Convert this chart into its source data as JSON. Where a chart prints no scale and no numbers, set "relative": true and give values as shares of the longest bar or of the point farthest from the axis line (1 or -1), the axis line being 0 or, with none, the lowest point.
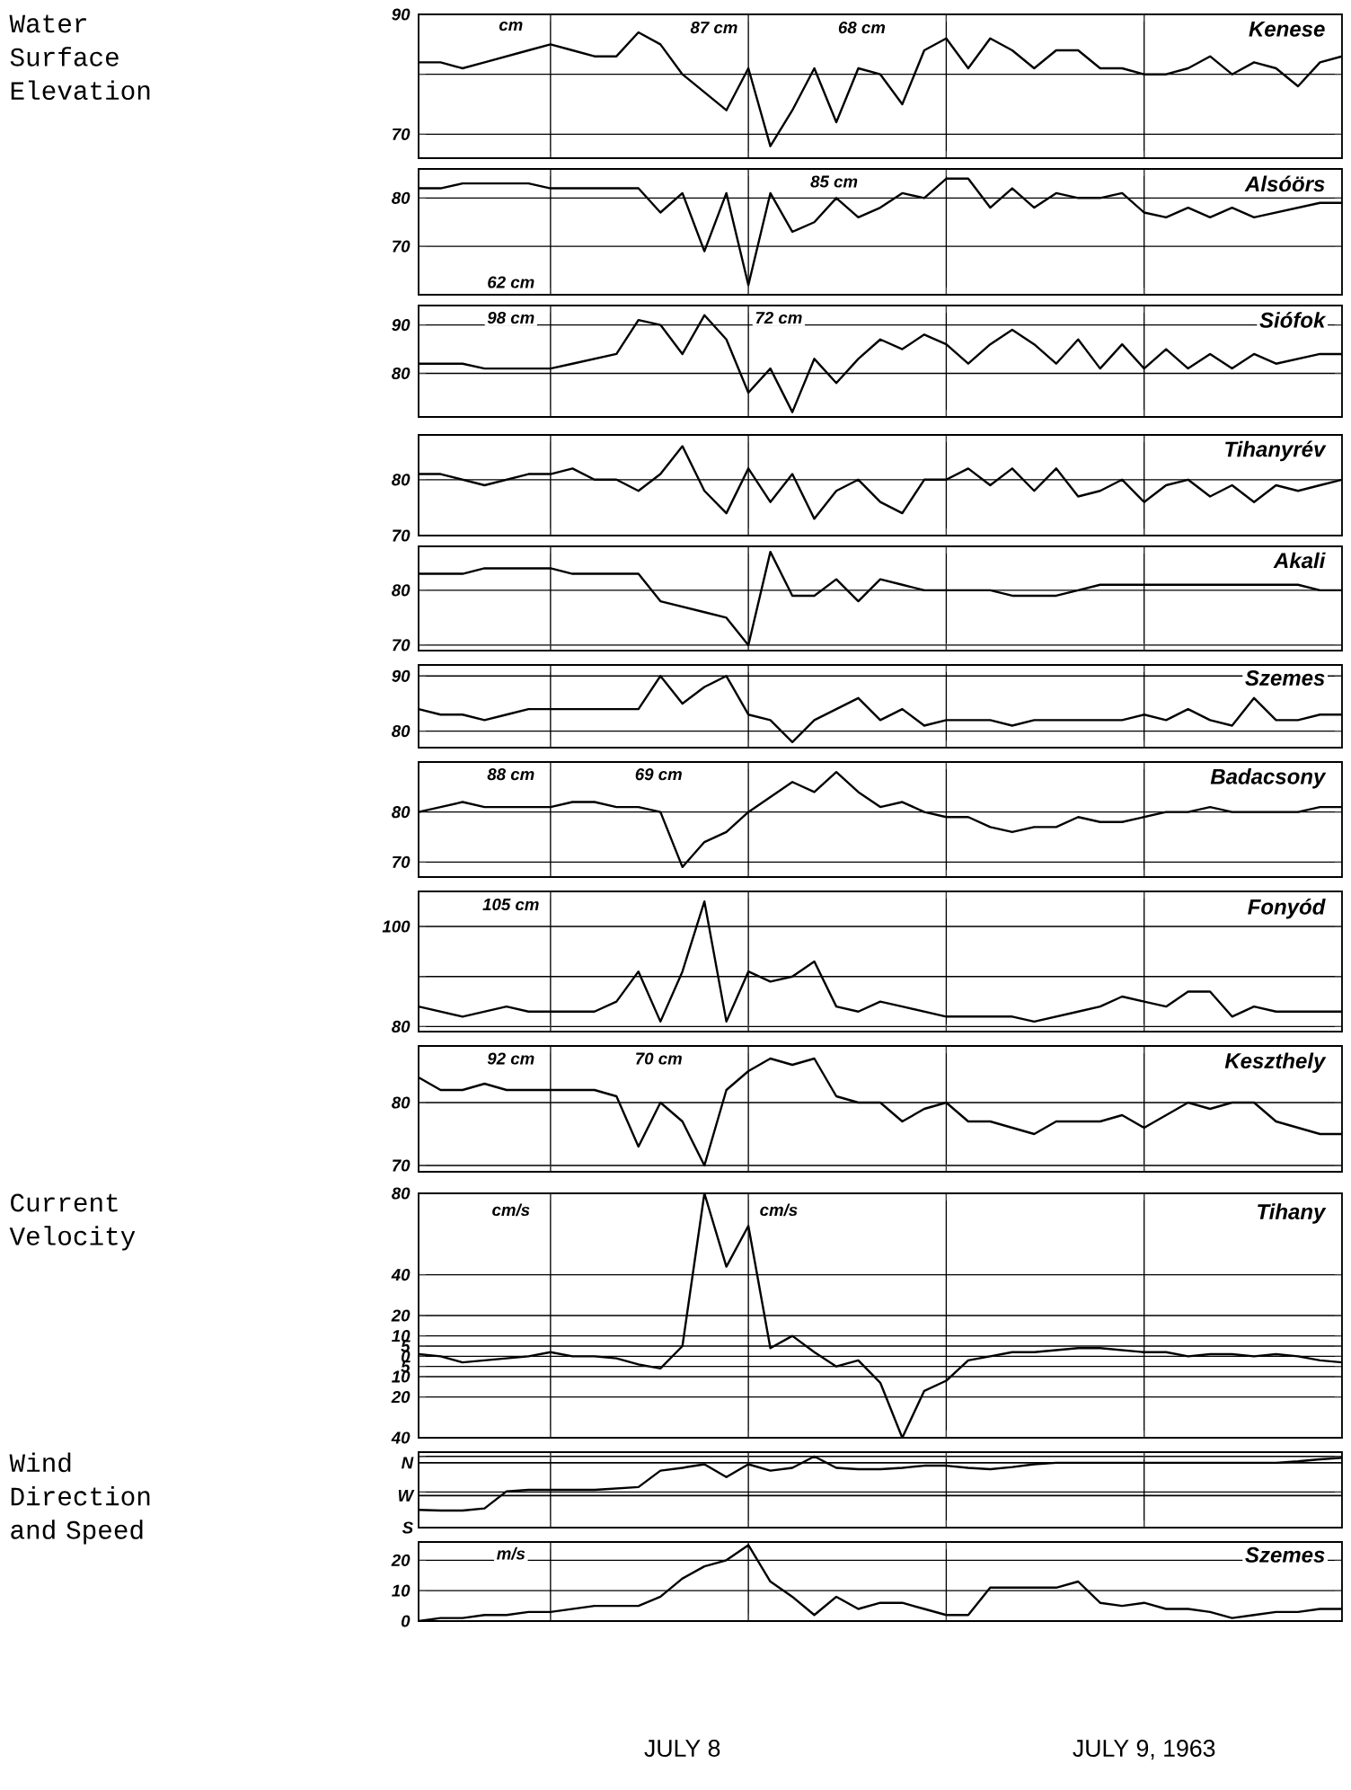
{
  "chart_data": [
    {
      "type": "line",
      "title": "Kenese",
      "ylabel": "Water Surface Elevation",
      "annotations": [
        "cm",
        "87 cm",
        "68 cm"
      ],
      "color": "#000000",
      "grid": true,
      "tick_labels": "y",
      "xlim": [
        "1963-07-08T00:00",
        "1963-07-09T18:00"
      ],
      "xticks": [
        {
          "value": "1963-07-08T06:00",
          "label": null
        },
        {
          "value": "1963-07-08T15:00",
          "label": null
        },
        {
          "value": "1963-07-09T00:00",
          "label": null
        },
        {
          "value": "1963-07-09T09:00",
          "label": null
        }
      ],
      "ylim": [
        66,
        90
      ],
      "yticks": [
        70,
        {
          "value": 80,
          "label": null
        },
        90
      ],
      "x": [
        "1963-07-08T00:00",
        "1963-07-08T01:00",
        "1963-07-08T02:00",
        "1963-07-08T03:00",
        "1963-07-08T04:00",
        "1963-07-08T05:00",
        "1963-07-08T06:00",
        "1963-07-08T07:00",
        "1963-07-08T08:00",
        "1963-07-08T09:00",
        "1963-07-08T10:00",
        "1963-07-08T11:00",
        "1963-07-08T12:00",
        "1963-07-08T13:00",
        "1963-07-08T14:00",
        "1963-07-08T15:00",
        "1963-07-08T16:00",
        "1963-07-08T17:00",
        "1963-07-08T18:00",
        "1963-07-08T19:00",
        "1963-07-08T20:00",
        "1963-07-08T21:00",
        "1963-07-08T22:00",
        "1963-07-08T23:00",
        "1963-07-09T00:00",
        "1963-07-09T01:00",
        "1963-07-09T02:00",
        "1963-07-09T03:00",
        "1963-07-09T04:00",
        "1963-07-09T05:00",
        "1963-07-09T06:00",
        "1963-07-09T07:00",
        "1963-07-09T08:00",
        "1963-07-09T09:00",
        "1963-07-09T10:00",
        "1963-07-09T11:00",
        "1963-07-09T12:00",
        "1963-07-09T13:00",
        "1963-07-09T14:00",
        "1963-07-09T15:00",
        "1963-07-09T16:00",
        "1963-07-09T17:00",
        "1963-07-09T18:00"
      ],
      "values": [
        82,
        82,
        81,
        82,
        83,
        84,
        85,
        84,
        83,
        83,
        87,
        85,
        80,
        77,
        74,
        81,
        68,
        74,
        81,
        72,
        81,
        80,
        75,
        84,
        86,
        81,
        86,
        84,
        81,
        84,
        84,
        81,
        81,
        80,
        80,
        81,
        83,
        80,
        82,
        81,
        78,
        82,
        83
      ]
    },
    {
      "type": "line",
      "title": "Alsóörs",
      "annotations": [
        "85 cm",
        "62 cm"
      ],
      "color": "#000000",
      "grid": true,
      "tick_labels": "y",
      "xlim": [
        "1963-07-08T00:00",
        "1963-07-09T18:00"
      ],
      "xticks": [
        {
          "value": "1963-07-08T06:00",
          "label": null
        },
        {
          "value": "1963-07-08T15:00",
          "label": null
        },
        {
          "value": "1963-07-09T00:00",
          "label": null
        },
        {
          "value": "1963-07-09T09:00",
          "label": null
        }
      ],
      "ylim": [
        60,
        86
      ],
      "yticks": [
        70,
        80
      ],
      "x": [
        "1963-07-08T00:00",
        "1963-07-08T01:00",
        "1963-07-08T02:00",
        "1963-07-08T03:00",
        "1963-07-08T04:00",
        "1963-07-08T05:00",
        "1963-07-08T06:00",
        "1963-07-08T07:00",
        "1963-07-08T08:00",
        "1963-07-08T09:00",
        "1963-07-08T10:00",
        "1963-07-08T11:00",
        "1963-07-08T12:00",
        "1963-07-08T13:00",
        "1963-07-08T14:00",
        "1963-07-08T15:00",
        "1963-07-08T16:00",
        "1963-07-08T17:00",
        "1963-07-08T18:00",
        "1963-07-08T19:00",
        "1963-07-08T20:00",
        "1963-07-08T21:00",
        "1963-07-08T22:00",
        "1963-07-08T23:00",
        "1963-07-09T00:00",
        "1963-07-09T01:00",
        "1963-07-09T02:00",
        "1963-07-09T03:00",
        "1963-07-09T04:00",
        "1963-07-09T05:00",
        "1963-07-09T06:00",
        "1963-07-09T07:00",
        "1963-07-09T08:00",
        "1963-07-09T09:00",
        "1963-07-09T10:00",
        "1963-07-09T11:00",
        "1963-07-09T12:00",
        "1963-07-09T13:00",
        "1963-07-09T14:00",
        "1963-07-09T15:00",
        "1963-07-09T16:00",
        "1963-07-09T17:00",
        "1963-07-09T18:00"
      ],
      "values": [
        82,
        82,
        83,
        83,
        83,
        83,
        82,
        82,
        82,
        82,
        82,
        77,
        81,
        69,
        81,
        62,
        81,
        73,
        75,
        80,
        76,
        78,
        81,
        80,
        84,
        84,
        78,
        82,
        78,
        81,
        80,
        80,
        81,
        77,
        76,
        78,
        76,
        78,
        76,
        77,
        78,
        79,
        79
      ]
    },
    {
      "type": "line",
      "title": "Siófok",
      "annotations": [
        "98 cm",
        "72 cm"
      ],
      "color": "#000000",
      "grid": true,
      "tick_labels": "y",
      "xlim": [
        "1963-07-08T00:00",
        "1963-07-09T18:00"
      ],
      "xticks": [
        {
          "value": "1963-07-08T06:00",
          "label": null
        },
        {
          "value": "1963-07-08T15:00",
          "label": null
        },
        {
          "value": "1963-07-09T00:00",
          "label": null
        },
        {
          "value": "1963-07-09T09:00",
          "label": null
        }
      ],
      "ylim": [
        71,
        94
      ],
      "yticks": [
        80,
        90
      ],
      "x": [
        "1963-07-08T00:00",
        "1963-07-08T01:00",
        "1963-07-08T02:00",
        "1963-07-08T03:00",
        "1963-07-08T04:00",
        "1963-07-08T05:00",
        "1963-07-08T06:00",
        "1963-07-08T07:00",
        "1963-07-08T08:00",
        "1963-07-08T09:00",
        "1963-07-08T10:00",
        "1963-07-08T11:00",
        "1963-07-08T12:00",
        "1963-07-08T13:00",
        "1963-07-08T14:00",
        "1963-07-08T15:00",
        "1963-07-08T16:00",
        "1963-07-08T17:00",
        "1963-07-08T18:00",
        "1963-07-08T19:00",
        "1963-07-08T20:00",
        "1963-07-08T21:00",
        "1963-07-08T22:00",
        "1963-07-08T23:00",
        "1963-07-09T00:00",
        "1963-07-09T01:00",
        "1963-07-09T02:00",
        "1963-07-09T03:00",
        "1963-07-09T04:00",
        "1963-07-09T05:00",
        "1963-07-09T06:00",
        "1963-07-09T07:00",
        "1963-07-09T08:00",
        "1963-07-09T09:00",
        "1963-07-09T10:00",
        "1963-07-09T11:00",
        "1963-07-09T12:00",
        "1963-07-09T13:00",
        "1963-07-09T14:00",
        "1963-07-09T15:00",
        "1963-07-09T16:00",
        "1963-07-09T17:00",
        "1963-07-09T18:00"
      ],
      "values": [
        82,
        82,
        82,
        81,
        81,
        81,
        81,
        82,
        83,
        84,
        91,
        90,
        84,
        92,
        87,
        76,
        81,
        72,
        83,
        78,
        83,
        87,
        85,
        88,
        86,
        82,
        86,
        89,
        86,
        82,
        87,
        81,
        86,
        81,
        85,
        81,
        84,
        81,
        84,
        82,
        83,
        84,
        84
      ]
    },
    {
      "type": "line",
      "title": "Tihanyrév",
      "color": "#000000",
      "grid": true,
      "tick_labels": "y",
      "xlim": [
        "1963-07-08T00:00",
        "1963-07-09T18:00"
      ],
      "xticks": [
        {
          "value": "1963-07-08T06:00",
          "label": null
        },
        {
          "value": "1963-07-08T15:00",
          "label": null
        },
        {
          "value": "1963-07-09T00:00",
          "label": null
        },
        {
          "value": "1963-07-09T09:00",
          "label": null
        }
      ],
      "ylim": [
        70,
        88
      ],
      "yticks": [
        70,
        80
      ],
      "x": [
        "1963-07-08T00:00",
        "1963-07-08T01:00",
        "1963-07-08T02:00",
        "1963-07-08T03:00",
        "1963-07-08T04:00",
        "1963-07-08T05:00",
        "1963-07-08T06:00",
        "1963-07-08T07:00",
        "1963-07-08T08:00",
        "1963-07-08T09:00",
        "1963-07-08T10:00",
        "1963-07-08T11:00",
        "1963-07-08T12:00",
        "1963-07-08T13:00",
        "1963-07-08T14:00",
        "1963-07-08T15:00",
        "1963-07-08T16:00",
        "1963-07-08T17:00",
        "1963-07-08T18:00",
        "1963-07-08T19:00",
        "1963-07-08T20:00",
        "1963-07-08T21:00",
        "1963-07-08T22:00",
        "1963-07-08T23:00",
        "1963-07-09T00:00",
        "1963-07-09T01:00",
        "1963-07-09T02:00",
        "1963-07-09T03:00",
        "1963-07-09T04:00",
        "1963-07-09T05:00",
        "1963-07-09T06:00",
        "1963-07-09T07:00",
        "1963-07-09T08:00",
        "1963-07-09T09:00",
        "1963-07-09T10:00",
        "1963-07-09T11:00",
        "1963-07-09T12:00",
        "1963-07-09T13:00",
        "1963-07-09T14:00",
        "1963-07-09T15:00",
        "1963-07-09T16:00",
        "1963-07-09T17:00",
        "1963-07-09T18:00"
      ],
      "values": [
        81,
        81,
        80,
        79,
        80,
        81,
        81,
        82,
        80,
        80,
        78,
        81,
        86,
        78,
        74,
        82,
        76,
        81,
        73,
        78,
        80,
        76,
        74,
        80,
        80,
        82,
        79,
        82,
        78,
        82,
        77,
        78,
        80,
        76,
        79,
        80,
        77,
        79,
        76,
        79,
        78,
        79,
        80
      ]
    },
    {
      "type": "line",
      "title": "Akali",
      "color": "#000000",
      "grid": true,
      "tick_labels": "y",
      "xlim": [
        "1963-07-08T00:00",
        "1963-07-09T18:00"
      ],
      "xticks": [
        {
          "value": "1963-07-08T06:00",
          "label": null
        },
        {
          "value": "1963-07-08T15:00",
          "label": null
        },
        {
          "value": "1963-07-09T00:00",
          "label": null
        },
        {
          "value": "1963-07-09T09:00",
          "label": null
        }
      ],
      "ylim": [
        69,
        88
      ],
      "yticks": [
        70,
        80
      ],
      "x": [
        "1963-07-08T00:00",
        "1963-07-08T01:00",
        "1963-07-08T02:00",
        "1963-07-08T03:00",
        "1963-07-08T04:00",
        "1963-07-08T05:00",
        "1963-07-08T06:00",
        "1963-07-08T07:00",
        "1963-07-08T08:00",
        "1963-07-08T09:00",
        "1963-07-08T10:00",
        "1963-07-08T11:00",
        "1963-07-08T12:00",
        "1963-07-08T13:00",
        "1963-07-08T14:00",
        "1963-07-08T15:00",
        "1963-07-08T16:00",
        "1963-07-08T17:00",
        "1963-07-08T18:00",
        "1963-07-08T19:00",
        "1963-07-08T20:00",
        "1963-07-08T21:00",
        "1963-07-08T22:00",
        "1963-07-08T23:00",
        "1963-07-09T00:00",
        "1963-07-09T01:00",
        "1963-07-09T02:00",
        "1963-07-09T03:00",
        "1963-07-09T04:00",
        "1963-07-09T05:00",
        "1963-07-09T06:00",
        "1963-07-09T07:00",
        "1963-07-09T08:00",
        "1963-07-09T09:00",
        "1963-07-09T10:00",
        "1963-07-09T11:00",
        "1963-07-09T12:00",
        "1963-07-09T13:00",
        "1963-07-09T14:00",
        "1963-07-09T15:00",
        "1963-07-09T16:00",
        "1963-07-09T17:00",
        "1963-07-09T18:00"
      ],
      "values": [
        83,
        83,
        83,
        84,
        84,
        84,
        84,
        83,
        83,
        83,
        83,
        78,
        77,
        76,
        75,
        70,
        87,
        79,
        79,
        82,
        78,
        82,
        81,
        80,
        80,
        80,
        80,
        79,
        79,
        79,
        80,
        81,
        81,
        81,
        81,
        81,
        81,
        81,
        81,
        81,
        81,
        80,
        80
      ]
    },
    {
      "type": "line",
      "title": "Szemes",
      "color": "#000000",
      "grid": true,
      "tick_labels": "y",
      "xlim": [
        "1963-07-08T00:00",
        "1963-07-09T18:00"
      ],
      "xticks": [
        {
          "value": "1963-07-08T06:00",
          "label": null
        },
        {
          "value": "1963-07-08T15:00",
          "label": null
        },
        {
          "value": "1963-07-09T00:00",
          "label": null
        },
        {
          "value": "1963-07-09T09:00",
          "label": null
        }
      ],
      "ylim": [
        77,
        92
      ],
      "yticks": [
        80,
        90
      ],
      "x": [
        "1963-07-08T00:00",
        "1963-07-08T01:00",
        "1963-07-08T02:00",
        "1963-07-08T03:00",
        "1963-07-08T04:00",
        "1963-07-08T05:00",
        "1963-07-08T06:00",
        "1963-07-08T07:00",
        "1963-07-08T08:00",
        "1963-07-08T09:00",
        "1963-07-08T10:00",
        "1963-07-08T11:00",
        "1963-07-08T12:00",
        "1963-07-08T13:00",
        "1963-07-08T14:00",
        "1963-07-08T15:00",
        "1963-07-08T16:00",
        "1963-07-08T17:00",
        "1963-07-08T18:00",
        "1963-07-08T19:00",
        "1963-07-08T20:00",
        "1963-07-08T21:00",
        "1963-07-08T22:00",
        "1963-07-08T23:00",
        "1963-07-09T00:00",
        "1963-07-09T01:00",
        "1963-07-09T02:00",
        "1963-07-09T03:00",
        "1963-07-09T04:00",
        "1963-07-09T05:00",
        "1963-07-09T06:00",
        "1963-07-09T07:00",
        "1963-07-09T08:00",
        "1963-07-09T09:00",
        "1963-07-09T10:00",
        "1963-07-09T11:00",
        "1963-07-09T12:00",
        "1963-07-09T13:00",
        "1963-07-09T14:00",
        "1963-07-09T15:00",
        "1963-07-09T16:00",
        "1963-07-09T17:00",
        "1963-07-09T18:00"
      ],
      "values": [
        84,
        83,
        83,
        82,
        83,
        84,
        84,
        84,
        84,
        84,
        84,
        90,
        85,
        88,
        90,
        83,
        82,
        78,
        82,
        84,
        86,
        82,
        84,
        81,
        82,
        82,
        82,
        81,
        82,
        82,
        82,
        82,
        82,
        83,
        82,
        84,
        82,
        81,
        86,
        82,
        82,
        83,
        83
      ]
    },
    {
      "type": "line",
      "title": "Badacsony",
      "annotations": [
        "88 cm",
        "69 cm"
      ],
      "color": "#000000",
      "grid": true,
      "tick_labels": "y",
      "xlim": [
        "1963-07-08T00:00",
        "1963-07-09T18:00"
      ],
      "xticks": [
        {
          "value": "1963-07-08T06:00",
          "label": null
        },
        {
          "value": "1963-07-08T15:00",
          "label": null
        },
        {
          "value": "1963-07-09T00:00",
          "label": null
        },
        {
          "value": "1963-07-09T09:00",
          "label": null
        }
      ],
      "ylim": [
        67,
        90
      ],
      "yticks": [
        70,
        80
      ],
      "x": [
        "1963-07-08T00:00",
        "1963-07-08T01:00",
        "1963-07-08T02:00",
        "1963-07-08T03:00",
        "1963-07-08T04:00",
        "1963-07-08T05:00",
        "1963-07-08T06:00",
        "1963-07-08T07:00",
        "1963-07-08T08:00",
        "1963-07-08T09:00",
        "1963-07-08T10:00",
        "1963-07-08T11:00",
        "1963-07-08T12:00",
        "1963-07-08T13:00",
        "1963-07-08T14:00",
        "1963-07-08T15:00",
        "1963-07-08T16:00",
        "1963-07-08T17:00",
        "1963-07-08T18:00",
        "1963-07-08T19:00",
        "1963-07-08T20:00",
        "1963-07-08T21:00",
        "1963-07-08T22:00",
        "1963-07-08T23:00",
        "1963-07-09T00:00",
        "1963-07-09T01:00",
        "1963-07-09T02:00",
        "1963-07-09T03:00",
        "1963-07-09T04:00",
        "1963-07-09T05:00",
        "1963-07-09T06:00",
        "1963-07-09T07:00",
        "1963-07-09T08:00",
        "1963-07-09T09:00",
        "1963-07-09T10:00",
        "1963-07-09T11:00",
        "1963-07-09T12:00",
        "1963-07-09T13:00",
        "1963-07-09T14:00",
        "1963-07-09T15:00",
        "1963-07-09T16:00",
        "1963-07-09T17:00",
        "1963-07-09T18:00"
      ],
      "values": [
        80,
        81,
        82,
        81,
        81,
        81,
        81,
        82,
        82,
        81,
        81,
        80,
        69,
        74,
        76,
        80,
        83,
        86,
        84,
        88,
        84,
        81,
        82,
        80,
        79,
        79,
        77,
        76,
        77,
        77,
        79,
        78,
        78,
        79,
        80,
        80,
        81,
        80,
        80,
        80,
        80,
        81,
        81
      ]
    },
    {
      "type": "line",
      "title": "Fonyód",
      "annotations": [
        "105 cm"
      ],
      "color": "#000000",
      "grid": true,
      "tick_labels": "y",
      "xlim": [
        "1963-07-08T00:00",
        "1963-07-09T18:00"
      ],
      "xticks": [
        {
          "value": "1963-07-08T06:00",
          "label": null
        },
        {
          "value": "1963-07-08T15:00",
          "label": null
        },
        {
          "value": "1963-07-09T00:00",
          "label": null
        },
        {
          "value": "1963-07-09T09:00",
          "label": null
        }
      ],
      "ylim": [
        79,
        107
      ],
      "yticks": [
        80,
        {
          "value": 90,
          "label": null
        },
        100
      ],
      "x": [
        "1963-07-08T00:00",
        "1963-07-08T01:00",
        "1963-07-08T02:00",
        "1963-07-08T03:00",
        "1963-07-08T04:00",
        "1963-07-08T05:00",
        "1963-07-08T06:00",
        "1963-07-08T07:00",
        "1963-07-08T08:00",
        "1963-07-08T09:00",
        "1963-07-08T10:00",
        "1963-07-08T11:00",
        "1963-07-08T12:00",
        "1963-07-08T13:00",
        "1963-07-08T14:00",
        "1963-07-08T15:00",
        "1963-07-08T16:00",
        "1963-07-08T17:00",
        "1963-07-08T18:00",
        "1963-07-08T19:00",
        "1963-07-08T20:00",
        "1963-07-08T21:00",
        "1963-07-08T22:00",
        "1963-07-08T23:00",
        "1963-07-09T00:00",
        "1963-07-09T01:00",
        "1963-07-09T02:00",
        "1963-07-09T03:00",
        "1963-07-09T04:00",
        "1963-07-09T05:00",
        "1963-07-09T06:00",
        "1963-07-09T07:00",
        "1963-07-09T08:00",
        "1963-07-09T09:00",
        "1963-07-09T10:00",
        "1963-07-09T11:00",
        "1963-07-09T12:00",
        "1963-07-09T13:00",
        "1963-07-09T14:00",
        "1963-07-09T15:00",
        "1963-07-09T16:00",
        "1963-07-09T17:00",
        "1963-07-09T18:00"
      ],
      "values": [
        84,
        83,
        82,
        83,
        84,
        83,
        83,
        83,
        83,
        85,
        91,
        81,
        91,
        105,
        81,
        91,
        89,
        90,
        93,
        84,
        83,
        85,
        84,
        83,
        82,
        82,
        82,
        82,
        81,
        82,
        83,
        84,
        86,
        85,
        84,
        87,
        87,
        82,
        84,
        83,
        83,
        83,
        83
      ]
    },
    {
      "type": "line",
      "title": "Keszthely",
      "annotations": [
        "92 cm",
        "70 cm"
      ],
      "color": "#000000",
      "grid": true,
      "tick_labels": "y",
      "xlim": [
        "1963-07-08T00:00",
        "1963-07-09T18:00"
      ],
      "xticks": [
        {
          "value": "1963-07-08T06:00",
          "label": null
        },
        {
          "value": "1963-07-08T15:00",
          "label": null
        },
        {
          "value": "1963-07-09T00:00",
          "label": null
        },
        {
          "value": "1963-07-09T09:00",
          "label": null
        }
      ],
      "ylim": [
        69,
        89
      ],
      "yticks": [
        70,
        80
      ],
      "x": [
        "1963-07-08T00:00",
        "1963-07-08T01:00",
        "1963-07-08T02:00",
        "1963-07-08T03:00",
        "1963-07-08T04:00",
        "1963-07-08T05:00",
        "1963-07-08T06:00",
        "1963-07-08T07:00",
        "1963-07-08T08:00",
        "1963-07-08T09:00",
        "1963-07-08T10:00",
        "1963-07-08T11:00",
        "1963-07-08T12:00",
        "1963-07-08T13:00",
        "1963-07-08T14:00",
        "1963-07-08T15:00",
        "1963-07-08T16:00",
        "1963-07-08T17:00",
        "1963-07-08T18:00",
        "1963-07-08T19:00",
        "1963-07-08T20:00",
        "1963-07-08T21:00",
        "1963-07-08T22:00",
        "1963-07-08T23:00",
        "1963-07-09T00:00",
        "1963-07-09T01:00",
        "1963-07-09T02:00",
        "1963-07-09T03:00",
        "1963-07-09T04:00",
        "1963-07-09T05:00",
        "1963-07-09T06:00",
        "1963-07-09T07:00",
        "1963-07-09T08:00",
        "1963-07-09T09:00",
        "1963-07-09T10:00",
        "1963-07-09T11:00",
        "1963-07-09T12:00",
        "1963-07-09T13:00",
        "1963-07-09T14:00",
        "1963-07-09T15:00",
        "1963-07-09T16:00",
        "1963-07-09T17:00",
        "1963-07-09T18:00"
      ],
      "values": [
        84,
        82,
        82,
        83,
        82,
        82,
        82,
        82,
        82,
        81,
        73,
        80,
        77,
        70,
        82,
        85,
        87,
        86,
        87,
        81,
        80,
        80,
        77,
        79,
        80,
        77,
        77,
        76,
        75,
        77,
        77,
        77,
        78,
        76,
        78,
        80,
        79,
        80,
        80,
        77,
        76,
        75,
        75
      ]
    },
    {
      "type": "line",
      "title": "Tihany",
      "ylabel": "Current Velocity",
      "annotations": [
        "cm/s",
        "cm/s"
      ],
      "color": "#000000",
      "grid": true,
      "tick_labels": "y",
      "xlim": [
        "1963-07-08T00:00",
        "1963-07-09T18:00"
      ],
      "xticks": [
        {
          "value": "1963-07-08T06:00",
          "label": null
        },
        {
          "value": "1963-07-08T15:00",
          "label": null
        },
        {
          "value": "1963-07-09T00:00",
          "label": null
        },
        {
          "value": "1963-07-09T09:00",
          "label": null
        }
      ],
      "ylim": [
        -40,
        80
      ],
      "yticks": [
        {
          "value": -40,
          "label": "40"
        },
        {
          "value": -20,
          "label": "20"
        },
        {
          "value": -10,
          "label": "10"
        },
        {
          "value": -5,
          "label": "5"
        },
        0,
        5,
        10,
        20,
        40,
        80
      ],
      "x": [
        "1963-07-08T00:00",
        "1963-07-08T01:00",
        "1963-07-08T02:00",
        "1963-07-08T03:00",
        "1963-07-08T04:00",
        "1963-07-08T05:00",
        "1963-07-08T06:00",
        "1963-07-08T07:00",
        "1963-07-08T08:00",
        "1963-07-08T09:00",
        "1963-07-08T10:00",
        "1963-07-08T11:00",
        "1963-07-08T12:00",
        "1963-07-08T13:00",
        "1963-07-08T14:00",
        "1963-07-08T15:00",
        "1963-07-08T16:00",
        "1963-07-08T17:00",
        "1963-07-08T18:00",
        "1963-07-08T19:00",
        "1963-07-08T20:00",
        "1963-07-08T21:00",
        "1963-07-08T22:00",
        "1963-07-08T23:00",
        "1963-07-09T00:00",
        "1963-07-09T01:00",
        "1963-07-09T02:00",
        "1963-07-09T03:00",
        "1963-07-09T04:00",
        "1963-07-09T05:00",
        "1963-07-09T06:00",
        "1963-07-09T07:00",
        "1963-07-09T08:00",
        "1963-07-09T09:00",
        "1963-07-09T10:00",
        "1963-07-09T11:00",
        "1963-07-09T12:00",
        "1963-07-09T13:00",
        "1963-07-09T14:00",
        "1963-07-09T15:00",
        "1963-07-09T16:00",
        "1963-07-09T17:00",
        "1963-07-09T18:00"
      ],
      "values": [
        1,
        0,
        -3,
        -2,
        -1,
        0,
        2,
        0,
        0,
        -1,
        -4,
        -6,
        5,
        80,
        44,
        64,
        4,
        10,
        2,
        -5,
        -2,
        -13,
        -40,
        -17,
        -12,
        -2,
        0,
        2,
        2,
        3,
        4,
        4,
        3,
        2,
        2,
        0,
        1,
        1,
        0,
        1,
        0,
        -2,
        -3
      ]
    },
    {
      "type": "line",
      "ylabel": "Wind Direction and Speed",
      "color": "#000000",
      "grid": true,
      "tick_labels": "y",
      "xlim": [
        "1963-07-08T00:00",
        "1963-07-09T18:00"
      ],
      "xticks": [
        {
          "value": "1963-07-08T06:00",
          "label": null
        },
        {
          "value": "1963-07-08T15:00",
          "label": null
        },
        {
          "value": "1963-07-09T00:00",
          "label": null
        },
        {
          "value": "1963-07-09T09:00",
          "label": null
        }
      ],
      "relative": true,
      "ref_lines": [
        {
          "axis": "y",
          "value": 0,
          "label": "S"
        },
        {
          "axis": "y",
          "value": 0.45,
          "label": "W"
        },
        {
          "axis": "y",
          "value": 0.91,
          "label": "N"
        }
      ],
      "x": [
        "1963-07-08T00:00",
        "1963-07-08T01:00",
        "1963-07-08T02:00",
        "1963-07-08T03:00",
        "1963-07-08T04:00",
        "1963-07-08T05:00",
        "1963-07-08T06:00",
        "1963-07-08T07:00",
        "1963-07-08T08:00",
        "1963-07-08T09:00",
        "1963-07-08T10:00",
        "1963-07-08T11:00",
        "1963-07-08T12:00",
        "1963-07-08T13:00",
        "1963-07-08T14:00",
        "1963-07-08T15:00",
        "1963-07-08T16:00",
        "1963-07-08T17:00",
        "1963-07-08T18:00",
        "1963-07-08T19:00",
        "1963-07-08T20:00",
        "1963-07-08T21:00",
        "1963-07-08T22:00",
        "1963-07-08T23:00",
        "1963-07-09T00:00",
        "1963-07-09T01:00",
        "1963-07-09T02:00",
        "1963-07-09T03:00",
        "1963-07-09T04:00",
        "1963-07-09T05:00",
        "1963-07-09T06:00",
        "1963-07-09T07:00",
        "1963-07-09T08:00",
        "1963-07-09T09:00",
        "1963-07-09T10:00",
        "1963-07-09T11:00",
        "1963-07-09T12:00",
        "1963-07-09T13:00",
        "1963-07-09T14:00",
        "1963-07-09T15:00",
        "1963-07-09T16:00",
        "1963-07-09T17:00",
        "1963-07-09T18:00"
      ],
      "values": [
        0.25,
        0.24,
        0.24,
        0.27,
        0.51,
        0.53,
        0.53,
        0.53,
        0.53,
        0.55,
        0.57,
        0.8,
        0.84,
        0.89,
        0.71,
        0.89,
        0.8,
        0.84,
        1,
        0.84,
        0.82,
        0.82,
        0.84,
        0.87,
        0.87,
        0.84,
        0.82,
        0.85,
        0.89,
        0.91,
        0.91,
        0.91,
        0.91,
        0.91,
        0.91,
        0.91,
        0.91,
        0.91,
        0.91,
        0.91,
        0.93,
        0.96,
        0.98
      ]
    },
    {
      "type": "line",
      "title": "Szemes",
      "annotations": [
        "m/s"
      ],
      "color": "#000000",
      "grid": true,
      "xlim": [
        "1963-07-08T00:00",
        "1963-07-09T18:00"
      ],
      "xticks": [
        {
          "value": "1963-07-08T06:00",
          "label": null
        },
        {
          "value": "1963-07-08T12:00",
          "label": "JULY 8"
        },
        {
          "value": "1963-07-08T15:00",
          "label": null
        },
        {
          "value": "1963-07-09T00:00",
          "label": null
        },
        {
          "value": "1963-07-09T09:00",
          "label": "JULY 9, 1963"
        }
      ],
      "ylim": [
        0,
        26
      ],
      "yticks": [
        0,
        10,
        20
      ],
      "x": [
        "1963-07-08T00:00",
        "1963-07-08T01:00",
        "1963-07-08T02:00",
        "1963-07-08T03:00",
        "1963-07-08T04:00",
        "1963-07-08T05:00",
        "1963-07-08T06:00",
        "1963-07-08T07:00",
        "1963-07-08T08:00",
        "1963-07-08T09:00",
        "1963-07-08T10:00",
        "1963-07-08T11:00",
        "1963-07-08T12:00",
        "1963-07-08T13:00",
        "1963-07-08T14:00",
        "1963-07-08T15:00",
        "1963-07-08T16:00",
        "1963-07-08T17:00",
        "1963-07-08T18:00",
        "1963-07-08T19:00",
        "1963-07-08T20:00",
        "1963-07-08T21:00",
        "1963-07-08T22:00",
        "1963-07-08T23:00",
        "1963-07-09T00:00",
        "1963-07-09T01:00",
        "1963-07-09T02:00",
        "1963-07-09T03:00",
        "1963-07-09T04:00",
        "1963-07-09T05:00",
        "1963-07-09T06:00",
        "1963-07-09T07:00",
        "1963-07-09T08:00",
        "1963-07-09T09:00",
        "1963-07-09T10:00",
        "1963-07-09T11:00",
        "1963-07-09T12:00",
        "1963-07-09T13:00",
        "1963-07-09T14:00",
        "1963-07-09T15:00",
        "1963-07-09T16:00",
        "1963-07-09T17:00",
        "1963-07-09T18:00"
      ],
      "values": [
        0,
        1,
        1,
        2,
        2,
        3,
        3,
        4,
        5,
        5,
        5,
        8,
        14,
        18,
        20,
        25,
        13,
        8,
        2,
        8,
        4,
        6,
        6,
        4,
        2,
        2,
        11,
        11,
        11,
        11,
        13,
        6,
        5,
        6,
        4,
        4,
        3,
        1,
        2,
        3,
        3,
        4,
        4
      ]
    }
  ]
}
